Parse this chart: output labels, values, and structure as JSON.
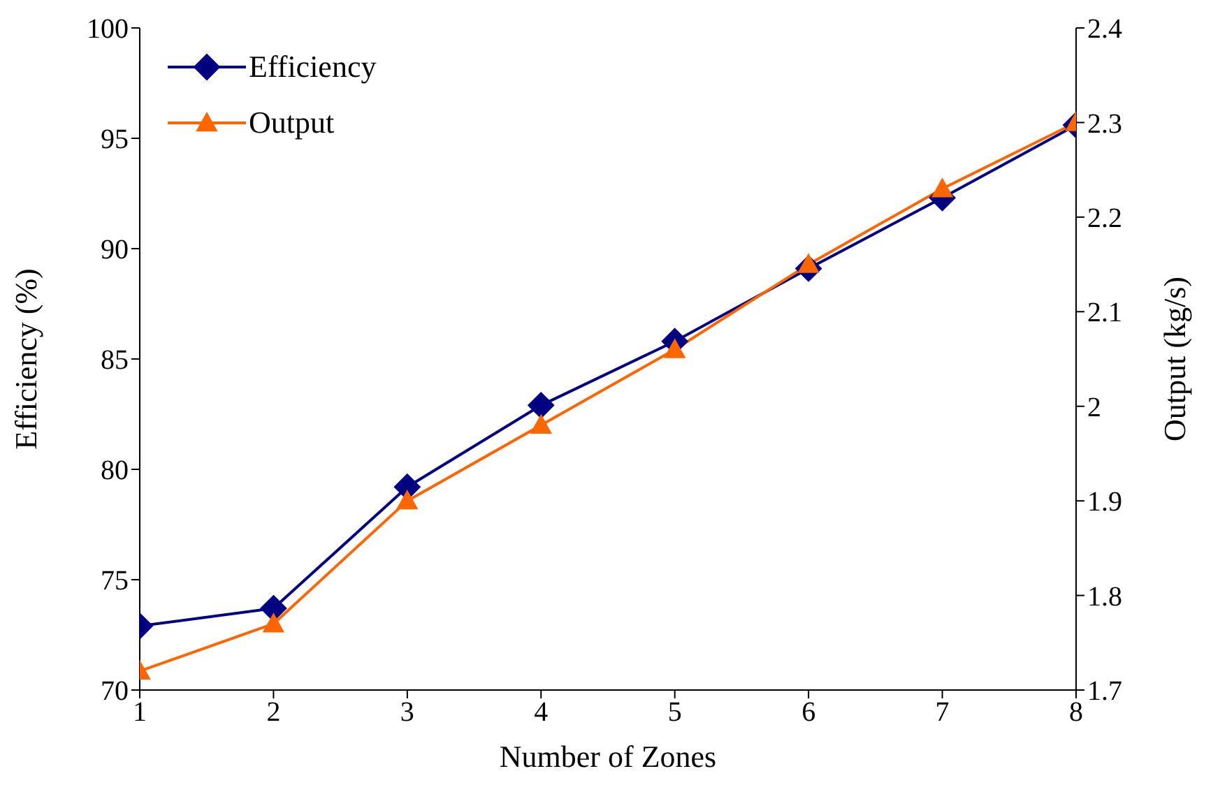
{
  "chart_data": {
    "type": "line",
    "xlabel": "Number of Zones",
    "ylabel": "Efficiency (%)",
    "y2label": "Output (kg/s)",
    "x": [
      1,
      2,
      3,
      4,
      5,
      6,
      7,
      8
    ],
    "series": [
      {
        "name": "Efficiency",
        "color": "#000080",
        "marker": "diamond",
        "values": [
          72.9,
          73.7,
          79.2,
          82.9,
          85.8,
          89.1,
          92.3,
          95.6
        ]
      },
      {
        "name": "Output",
        "color": "#ff6600",
        "marker": "triangle",
        "axis": "y2",
        "values": [
          1.72,
          1.77,
          1.9,
          1.98,
          2.06,
          2.15,
          2.23,
          2.3
        ]
      }
    ],
    "xlim": [
      1,
      8
    ],
    "xticks": [
      1,
      2,
      3,
      4,
      5,
      6,
      7,
      8
    ],
    "ylim": [
      70,
      100
    ],
    "yticks": [
      70,
      75,
      80,
      85,
      90,
      95,
      100
    ],
    "y2lim": [
      1.7,
      2.4
    ],
    "y2ticks": [
      1.7,
      1.8,
      1.9,
      2,
      2.1,
      2.2,
      2.3,
      2.4
    ],
    "grid": false,
    "legend": "top left",
    "line_style": "solid"
  }
}
